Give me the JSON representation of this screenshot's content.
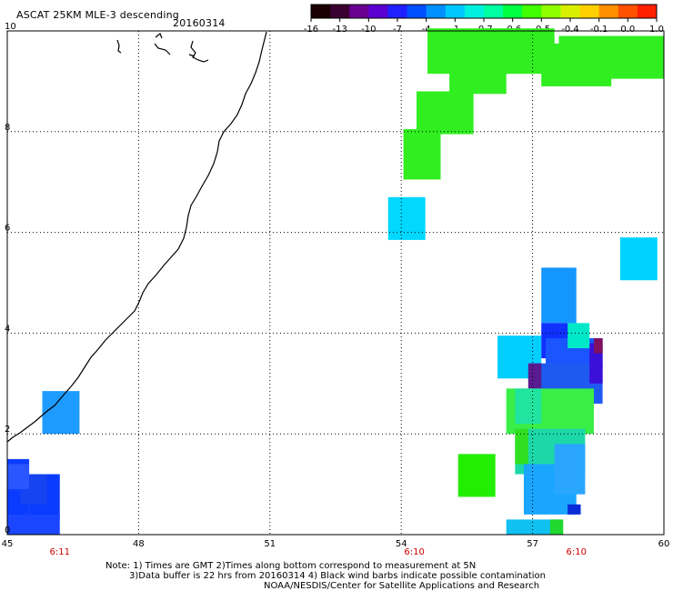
{
  "header": {
    "title": "ASCAT 25KM MLE-3 descending",
    "date": "20160314"
  },
  "colorbar": {
    "labels": [
      "-16",
      "-13",
      "-10",
      "-7",
      "-4",
      "-1",
      "-0.7",
      "-0.6",
      "-0.5",
      "-0.4",
      "-0.1",
      "0.0",
      "1.0"
    ],
    "colors": [
      "#1a0000",
      "#3a0030",
      "#6a0090",
      "#5a00d0",
      "#2020ff",
      "#0050ff",
      "#0090ff",
      "#00c8ff",
      "#00f0e0",
      "#00ffa0",
      "#00ff40",
      "#40ff00",
      "#90ff00",
      "#d8f000",
      "#ffd000",
      "#ff9000",
      "#ff5000",
      "#ff2000"
    ]
  },
  "map": {
    "lon_labels": [
      "45",
      "48",
      "51",
      "54",
      "57",
      "60"
    ],
    "lat_labels": [
      "0",
      "2",
      "4",
      "6",
      "8",
      "10"
    ],
    "lon_range": [
      45,
      60
    ],
    "lat_range": [
      0,
      10
    ],
    "time_labels": [
      {
        "lon": 46.2,
        "text": "6:11"
      },
      {
        "lon": 54.3,
        "text": "6:10"
      },
      {
        "lon": 58.0,
        "text": "6:10"
      }
    ],
    "grid": "dotted",
    "cells": [
      {
        "lon": 45.0,
        "lat": 0.3,
        "w": 0.5,
        "h": 1.2,
        "color": "#0a3cff"
      },
      {
        "lon": 45.5,
        "lat": 0.3,
        "w": 0.7,
        "h": 0.9,
        "color": "#0a3cff"
      },
      {
        "lon": 45.0,
        "lat": 0.0,
        "w": 1.2,
        "h": 0.4,
        "color": "#1a46ff"
      },
      {
        "lon": 45.3,
        "lat": 0.6,
        "w": 0.6,
        "h": 0.6,
        "color": "#1644f0"
      },
      {
        "lon": 45.0,
        "lat": 0.9,
        "w": 0.5,
        "h": 0.5,
        "color": "#2a55ff"
      },
      {
        "lon": 45.8,
        "lat": 2.0,
        "w": 0.85,
        "h": 0.85,
        "color": "#1e9bff"
      },
      {
        "lon": 53.7,
        "lat": 5.85,
        "w": 0.85,
        "h": 0.85,
        "color": "#00d8ff"
      },
      {
        "lon": 59.0,
        "lat": 5.05,
        "w": 0.85,
        "h": 0.85,
        "color": "#00d2ff"
      },
      {
        "lon": 56.2,
        "lat": 3.1,
        "w": 1.0,
        "h": 0.85,
        "color": "#00ceff"
      },
      {
        "lon": 55.3,
        "lat": 0.75,
        "w": 0.85,
        "h": 0.85,
        "color": "#22ee00"
      },
      {
        "lon": 54.6,
        "lat": 9.15,
        "w": 2.1,
        "h": 0.9,
        "color": "#30ee20"
      },
      {
        "lon": 55.9,
        "lat": 9.15,
        "w": 1.6,
        "h": 0.9,
        "color": "#30ee20"
      },
      {
        "lon": 55.1,
        "lat": 8.75,
        "w": 1.3,
        "h": 0.5,
        "color": "#30ee20"
      },
      {
        "lon": 54.35,
        "lat": 7.95,
        "w": 1.3,
        "h": 0.85,
        "color": "#30ee20"
      },
      {
        "lon": 54.05,
        "lat": 7.05,
        "w": 0.85,
        "h": 1.0,
        "color": "#30ee20"
      },
      {
        "lon": 57.2,
        "lat": 8.9,
        "w": 1.6,
        "h": 0.85,
        "color": "#30ee20"
      },
      {
        "lon": 57.6,
        "lat": 9.05,
        "w": 2.4,
        "h": 0.85,
        "color": "#30ee20"
      },
      {
        "lon": 57.2,
        "lat": 4.2,
        "w": 0.8,
        "h": 1.1,
        "color": "#1496ff"
      },
      {
        "lon": 57.2,
        "lat": 3.5,
        "w": 0.8,
        "h": 0.7,
        "color": "#1030ff"
      },
      {
        "lon": 57.3,
        "lat": 3.3,
        "w": 1.3,
        "h": 0.6,
        "color": "#1a55ff"
      },
      {
        "lon": 57.0,
        "lat": 2.6,
        "w": 1.6,
        "h": 0.8,
        "color": "#1f5af0"
      },
      {
        "lon": 58.3,
        "lat": 3.0,
        "w": 0.3,
        "h": 0.8,
        "color": "#3a10d8"
      },
      {
        "lon": 58.4,
        "lat": 3.6,
        "w": 0.2,
        "h": 0.3,
        "color": "#801060"
      },
      {
        "lon": 56.9,
        "lat": 2.9,
        "w": 0.3,
        "h": 0.5,
        "color": "#5a1a90"
      },
      {
        "lon": 57.8,
        "lat": 3.7,
        "w": 0.5,
        "h": 0.5,
        "color": "#00e8c8"
      },
      {
        "lon": 56.4,
        "lat": 2.0,
        "w": 2.0,
        "h": 0.9,
        "color": "#3aee48"
      },
      {
        "lon": 56.6,
        "lat": 2.2,
        "w": 0.6,
        "h": 0.7,
        "color": "#20e4a0"
      },
      {
        "lon": 56.6,
        "lat": 1.2,
        "w": 1.6,
        "h": 0.9,
        "color": "#1cd8a8"
      },
      {
        "lon": 56.6,
        "lat": 1.4,
        "w": 0.3,
        "h": 0.7,
        "color": "#30e020"
      },
      {
        "lon": 56.8,
        "lat": 0.4,
        "w": 1.2,
        "h": 1.0,
        "color": "#1aa6ff"
      },
      {
        "lon": 57.5,
        "lat": 0.8,
        "w": 0.7,
        "h": 1.0,
        "color": "#2aa6ff"
      },
      {
        "lon": 57.8,
        "lat": 0.4,
        "w": 0.3,
        "h": 0.2,
        "color": "#0a2cd8"
      },
      {
        "lon": 56.4,
        "lat": 0.0,
        "w": 1.2,
        "h": 0.3,
        "color": "#10c0f0"
      },
      {
        "lon": 57.4,
        "lat": 0.0,
        "w": 0.3,
        "h": 0.3,
        "color": "#20d830"
      }
    ]
  },
  "notes": [
    "Note: 1) Times are GMT 2)Times along bottom correspond to measurement at 5N",
    "3)Data buffer is 22 hrs from 20160314 4) Black wind barbs indicate possible contamination",
    "NOAA/NESDIS/Center for Satellite Applications and Research"
  ]
}
